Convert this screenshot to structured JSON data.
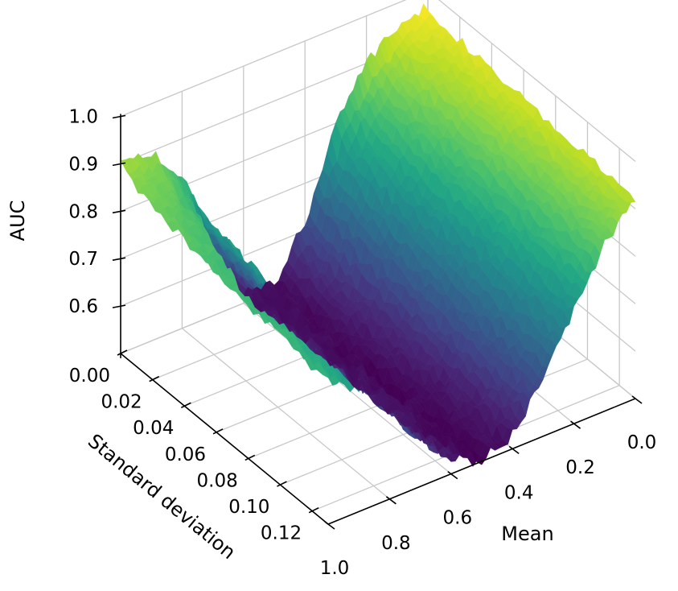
{
  "chart_data": {
    "type": "surface",
    "colormap": "viridis",
    "xlabel": "Mean",
    "ylabel": "Standard deviation",
    "zlabel": "AUC",
    "xlim": [
      0.0,
      1.0
    ],
    "ylim": [
      0.0,
      0.13
    ],
    "zlim": [
      0.5,
      1.0
    ],
    "xticks": [
      "0.0",
      "0.2",
      "0.4",
      "0.6",
      "0.8",
      "1.0"
    ],
    "yticks": [
      "0.00",
      "0.02",
      "0.04",
      "0.06",
      "0.08",
      "0.10",
      "0.12"
    ],
    "zticks": [
      "0.6",
      "0.7",
      "0.8",
      "0.9",
      "1.0"
    ],
    "surface_model": {
      "description_of_shape": "AUC near 0.5 for mean around 0.45-0.6, rising towards about 0.97 at mean 0 and about 0.91 at mean 1; the rise is sharpest at low standard deviation and flattens as standard deviation grows",
      "mean_values": [
        0.0,
        0.1,
        0.2,
        0.3,
        0.4,
        0.5,
        0.6,
        0.7,
        0.8,
        0.9,
        1.0
      ],
      "std_values": [
        0.0,
        0.02,
        0.04,
        0.06,
        0.08,
        0.1,
        0.12,
        0.13
      ],
      "auc_at_std_0": [
        0.97,
        0.95,
        0.9,
        0.8,
        0.62,
        0.51,
        0.52,
        0.66,
        0.82,
        0.9,
        0.91
      ],
      "auc_at_std_0_13": [
        0.92,
        0.85,
        0.74,
        0.62,
        0.53,
        0.5,
        0.53,
        0.6,
        0.7,
        0.76,
        0.8
      ]
    },
    "grid": true
  }
}
